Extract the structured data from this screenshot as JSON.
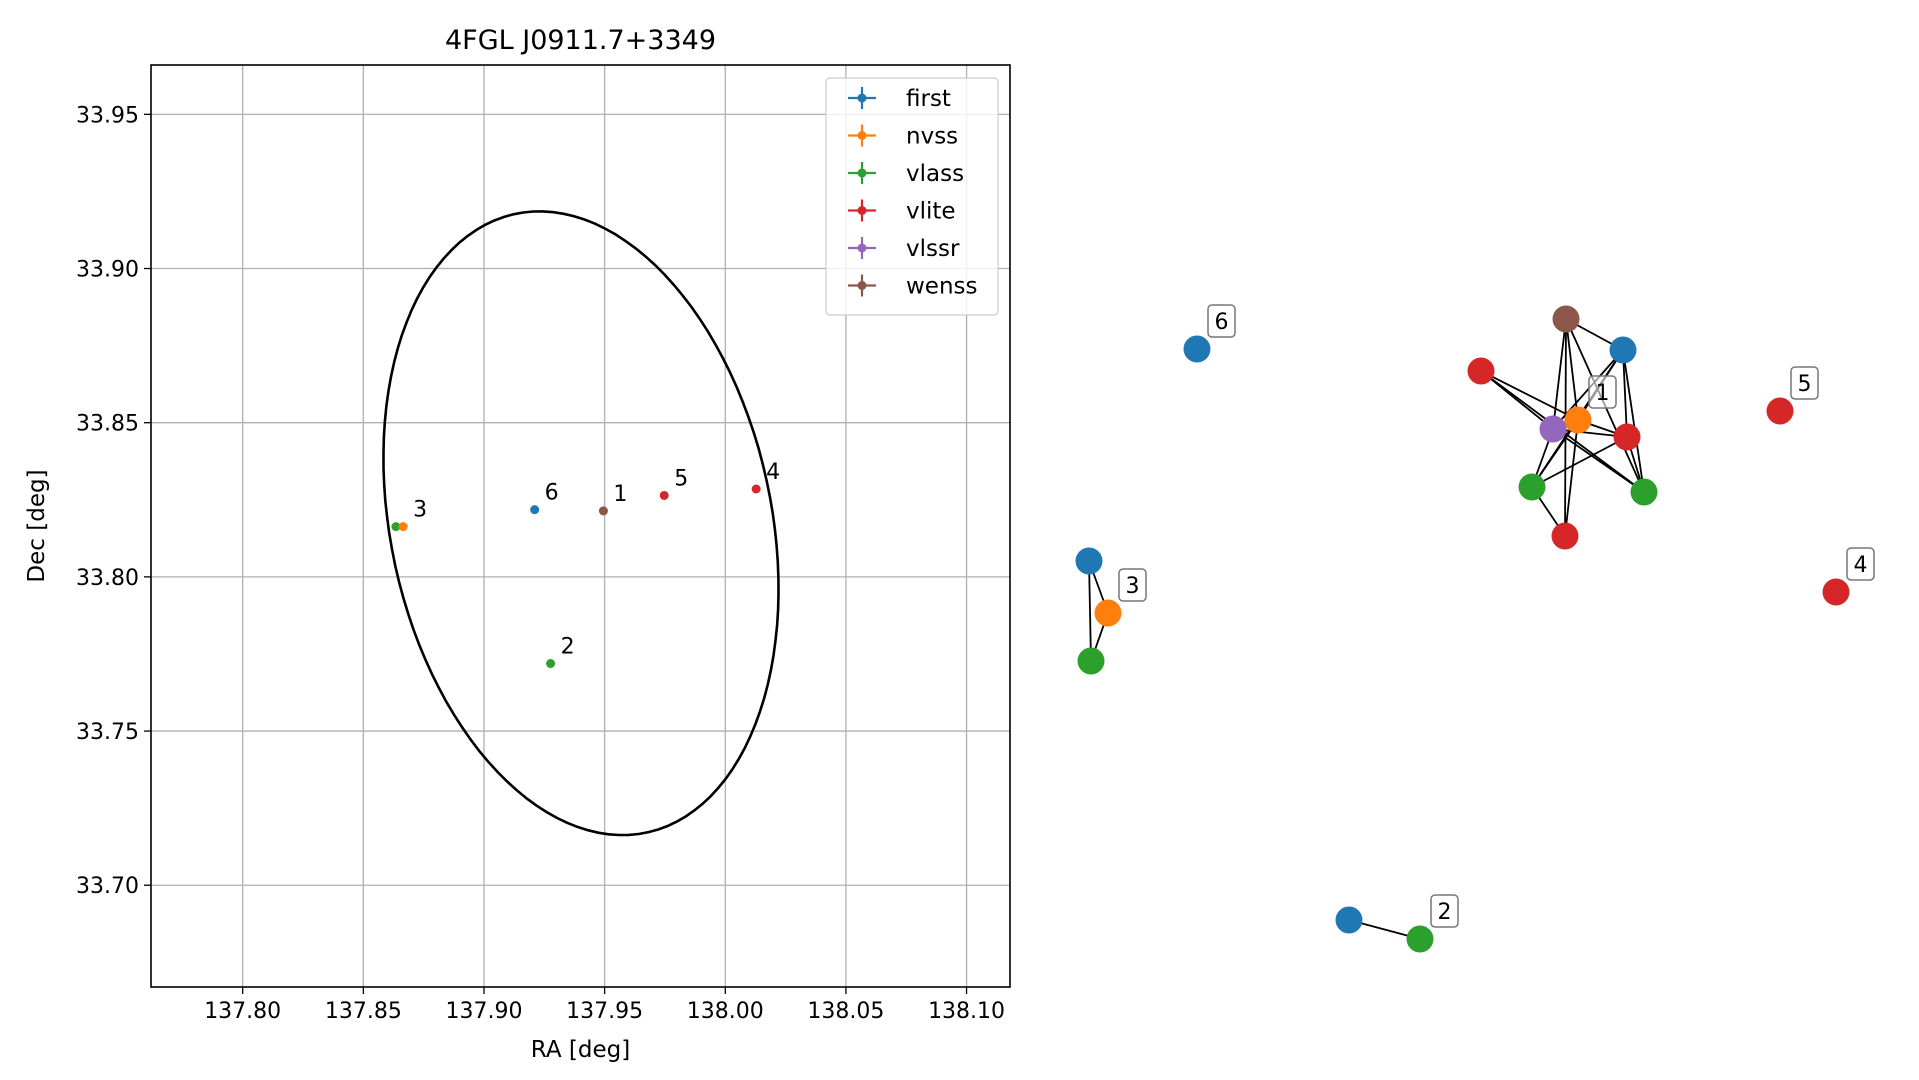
{
  "colors": {
    "first": "#1f77b4",
    "nvss": "#ff7f0e",
    "vlass": "#2ca02c",
    "vlite": "#d62728",
    "vlssr": "#9467bd",
    "wenss": "#8c564b"
  },
  "chart_data": [
    {
      "type": "scatter",
      "title": "4FGL J0911.7+3349",
      "xlabel": "RA [deg]",
      "ylabel": "Dec [deg]",
      "xlim": [
        137.762,
        138.118
      ],
      "ylim": [
        33.667,
        33.966
      ],
      "xticks": [
        "137.80",
        "137.85",
        "137.90",
        "137.95",
        "138.00",
        "138.05",
        "138.10"
      ],
      "xtick_values": [
        137.8,
        137.85,
        137.9,
        137.95,
        138.0,
        138.05,
        138.1
      ],
      "yticks": [
        "33.70",
        "33.75",
        "33.80",
        "33.85",
        "33.90",
        "33.95"
      ],
      "ytick_values": [
        33.7,
        33.75,
        33.8,
        33.85,
        33.9,
        33.95
      ],
      "grid": true,
      "legend_position": "upper right",
      "legend": [
        "first",
        "nvss",
        "vlass",
        "vlite",
        "vlssr",
        "wenss"
      ],
      "points": [
        {
          "survey": "wenss",
          "ra": 137.9495,
          "dec": 33.8214,
          "label": "1"
        },
        {
          "survey": "vlass",
          "ra": 137.9276,
          "dec": 33.7719,
          "label": "2"
        },
        {
          "survey": "vlass",
          "ra": 137.8635,
          "dec": 33.8163,
          "label": ""
        },
        {
          "survey": "nvss",
          "ra": 137.8665,
          "dec": 33.8163,
          "label": "3"
        },
        {
          "survey": "vlite",
          "ra": 138.0128,
          "dec": 33.8285,
          "label": "4"
        },
        {
          "survey": "vlite",
          "ra": 137.9747,
          "dec": 33.8264,
          "label": "5"
        },
        {
          "survey": "first",
          "ra": 137.921,
          "dec": 33.8218,
          "label": "6"
        }
      ],
      "ellipse": {
        "center_ra": 137.9402,
        "center_dec": 33.8174,
        "semi_major_deg": 0.1046,
        "semi_minor_deg": 0.0774,
        "angle_deg": 112.3
      }
    },
    {
      "type": "network",
      "nodes": [
        {
          "id": "g1-wenss",
          "survey": "wenss",
          "group": "1"
        },
        {
          "id": "g1-first",
          "survey": "first",
          "group": "1"
        },
        {
          "id": "g1-vlite-a",
          "survey": "vlite",
          "group": "1"
        },
        {
          "id": "g1-nvss",
          "survey": "nvss",
          "group": "1",
          "label": "1"
        },
        {
          "id": "g1-vlssr",
          "survey": "vlssr",
          "group": "1"
        },
        {
          "id": "g1-vlite-b",
          "survey": "vlite",
          "group": "1"
        },
        {
          "id": "g1-vlass-a",
          "survey": "vlass",
          "group": "1"
        },
        {
          "id": "g1-vlass-b",
          "survey": "vlass",
          "group": "1"
        },
        {
          "id": "g1-vlite-c",
          "survey": "vlite",
          "group": "1"
        },
        {
          "id": "g6-first",
          "survey": "first",
          "group": "6",
          "label": "6"
        },
        {
          "id": "g3-first",
          "survey": "first",
          "group": "3"
        },
        {
          "id": "g3-nvss",
          "survey": "nvss",
          "group": "3",
          "label": "3"
        },
        {
          "id": "g3-vlass",
          "survey": "vlass",
          "group": "3"
        },
        {
          "id": "g5-vlite",
          "survey": "vlite",
          "group": "5",
          "label": "5"
        },
        {
          "id": "g4-vlite",
          "survey": "vlite",
          "group": "4",
          "label": "4"
        },
        {
          "id": "g2-first",
          "survey": "first",
          "group": "2"
        },
        {
          "id": "g2-vlass",
          "survey": "vlass",
          "group": "2",
          "label": "2"
        }
      ],
      "edges": [
        [
          "g1-wenss",
          "g1-first"
        ],
        [
          "g1-wenss",
          "g1-nvss"
        ],
        [
          "g1-wenss",
          "g1-vlssr"
        ],
        [
          "g1-wenss",
          "g1-vlite-c"
        ],
        [
          "g1-wenss",
          "g1-vlass-b"
        ],
        [
          "g1-first",
          "g1-vlssr"
        ],
        [
          "g1-first",
          "g1-nvss"
        ],
        [
          "g1-first",
          "g1-vlite-b"
        ],
        [
          "g1-first",
          "g1-vlass-b"
        ],
        [
          "g1-first",
          "g1-vlass-a"
        ],
        [
          "g1-vlite-a",
          "g1-nvss"
        ],
        [
          "g1-vlite-a",
          "g1-vlssr"
        ],
        [
          "g1-vlite-a",
          "g1-vlass-b"
        ],
        [
          "g1-nvss",
          "g1-vlass-a"
        ],
        [
          "g1-nvss",
          "g1-vlite-c"
        ],
        [
          "g1-nvss",
          "g1-vlite-b"
        ],
        [
          "g1-vlssr",
          "g1-vlass-a"
        ],
        [
          "g1-vlssr",
          "g1-vlite-b"
        ],
        [
          "g1-vlssr",
          "g1-vlass-b"
        ],
        [
          "g1-vlite-b",
          "g1-vlass-a"
        ],
        [
          "g1-vlite-b",
          "g1-vlass-b"
        ],
        [
          "g1-vlass-a",
          "g1-vlite-c"
        ],
        [
          "g3-first",
          "g3-nvss"
        ],
        [
          "g3-first",
          "g3-vlass"
        ],
        [
          "g3-nvss",
          "g3-vlass"
        ],
        [
          "g2-first",
          "g2-vlass"
        ]
      ]
    }
  ]
}
